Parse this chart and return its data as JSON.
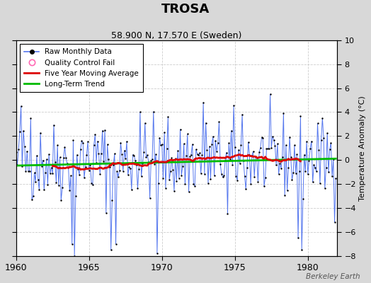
{
  "title": "TROSA",
  "subtitle": "58.900 N, 17.570 E (Sweden)",
  "ylabel": "Temperature Anomaly (°C)",
  "watermark": "Berkeley Earth",
  "xlim": [
    1960,
    1982
  ],
  "ylim": [
    -8,
    10
  ],
  "yticks": [
    -8,
    -6,
    -4,
    -2,
    0,
    2,
    4,
    6,
    8,
    10
  ],
  "xticks": [
    1960,
    1965,
    1970,
    1975,
    1980
  ],
  "bg_color": "#d8d8d8",
  "plot_bg_color": "#ffffff",
  "raw_line_color": "#5577ee",
  "raw_dot_color": "#000000",
  "moving_avg_color": "#dd0000",
  "trend_color": "#00bb00",
  "qc_fail_color": "#ff69b4",
  "seed": 42
}
